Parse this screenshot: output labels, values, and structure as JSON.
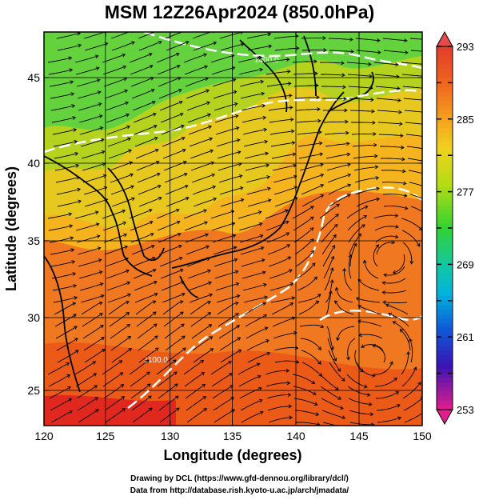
{
  "title": "MSM 12Z26Apr2024 (850.0hPa)",
  "x_axis": {
    "label": "Longitude (degrees)",
    "range": [
      120,
      150
    ],
    "ticks": [
      "120",
      "125",
      "130",
      "135",
      "140",
      "145",
      "150"
    ]
  },
  "y_axis": {
    "label": "Latitude  (degrees)",
    "range": [
      22.4,
      48
    ],
    "ticks": [
      "25",
      "30",
      "35",
      "40",
      "45"
    ]
  },
  "colorbar": {
    "range": [
      253,
      293
    ],
    "labels": [
      "293",
      "285",
      "277",
      "269",
      "261",
      "253"
    ],
    "label_values": [
      293,
      285,
      277,
      269,
      261,
      253
    ],
    "dashes": [
      289,
      281,
      273,
      265,
      257
    ],
    "colors": [
      "#e21e8c",
      "#3a14b4",
      "#0f58d8",
      "#00b4dc",
      "#14d278",
      "#32d232",
      "#b4dc14",
      "#f5d21e",
      "#f08c14",
      "#e13214"
    ]
  },
  "field": {
    "description": "850hPa temperature field with wind streamlines",
    "contour_labels": [
      "1100.0",
      "1400.0"
    ]
  },
  "credits": [
    "Drawing by DCL (https://www.gfd-dennou.org/library/dcl/)",
    "Data from http://database.rish.kyoto-u.ac.jp/arch/jmadata/"
  ]
}
